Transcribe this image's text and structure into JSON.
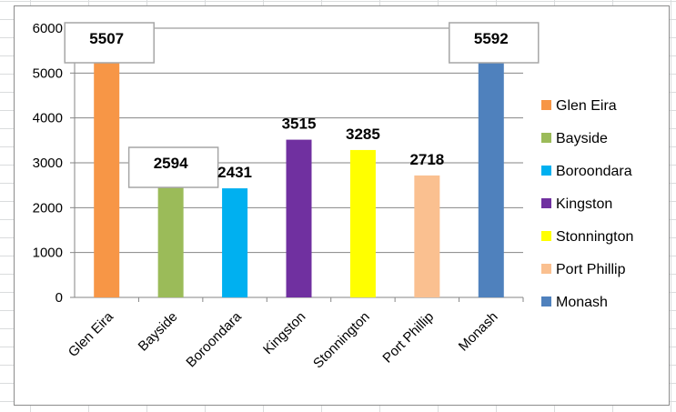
{
  "chart_data": {
    "type": "bar",
    "categories": [
      "Glen Eira",
      "Bayside",
      "Boroondara",
      "Kingston",
      "Stonnington",
      "Port Phillip",
      "Monash"
    ],
    "values": [
      5507,
      2594,
      2431,
      3515,
      3285,
      2718,
      5592
    ],
    "colors": [
      "#f79646",
      "#9bbb59",
      "#00b0f0",
      "#7030a0",
      "#ffff00",
      "#fac090",
      "#4f81bd"
    ],
    "data_labels": [
      "5507",
      "2594",
      "2431",
      "3515",
      "3285",
      "2718",
      "5592"
    ],
    "boxed_labels": [
      true,
      true,
      false,
      false,
      false,
      false,
      true
    ],
    "yticks": [
      "0",
      "1000",
      "2000",
      "3000",
      "4000",
      "5000",
      "6000"
    ],
    "ylim": [
      0,
      6000
    ],
    "grid": true,
    "legend": "right",
    "title": "",
    "xlabel": "",
    "ylabel": ""
  }
}
